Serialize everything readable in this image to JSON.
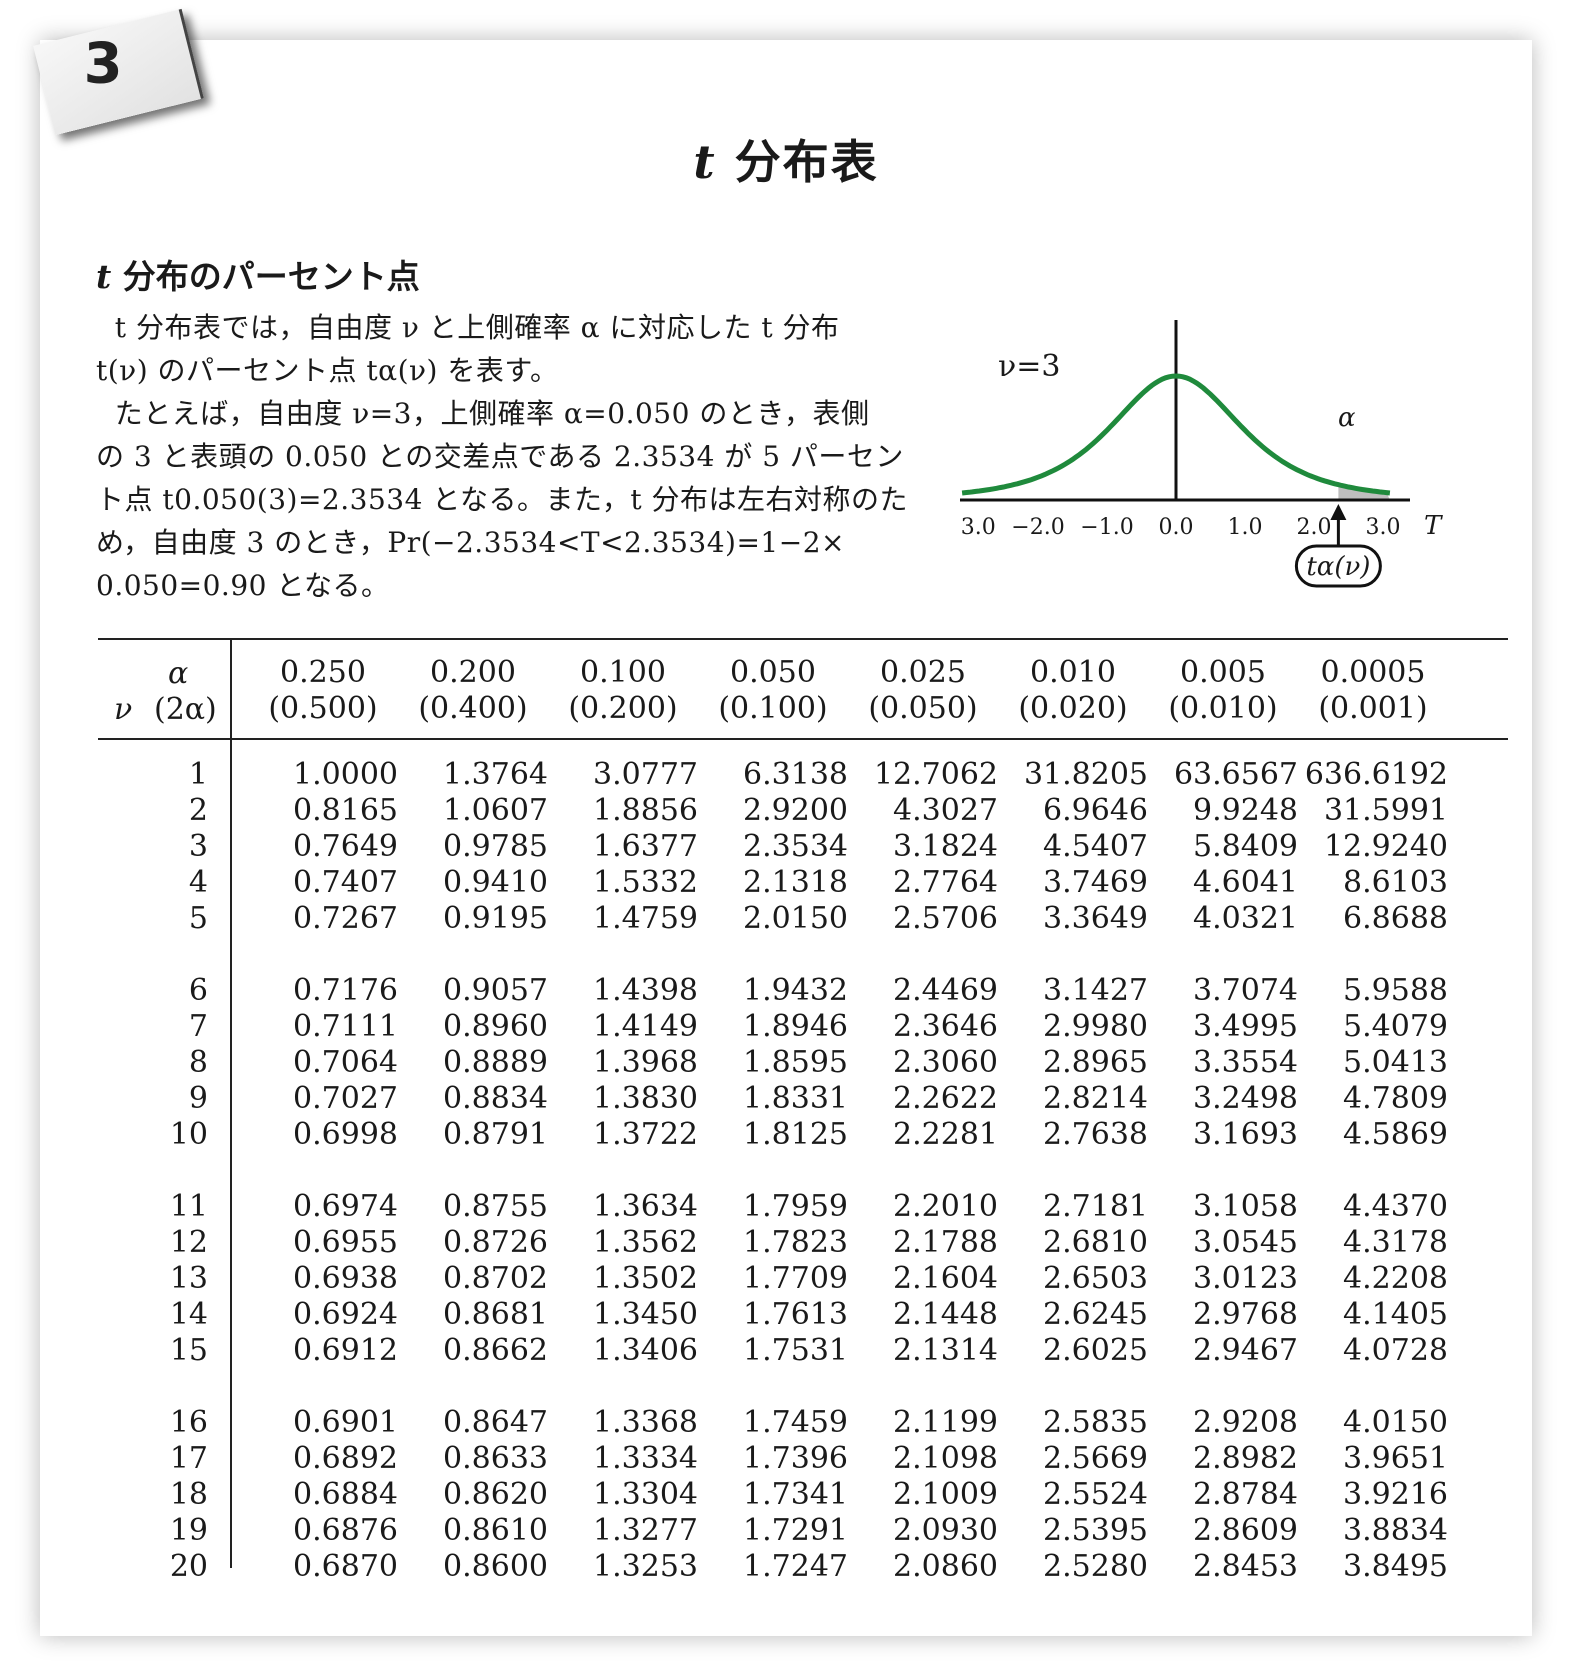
{
  "chapter_tab": "3",
  "title": {
    "symbol": "t",
    "text": "分布表"
  },
  "section": {
    "symbol": "t",
    "heading": "分布のパーセント点"
  },
  "description": [
    "  t 分布表では，自由度 ν と上側確率 α に対応した t 分布",
    "t(ν) のパーセント点 tα(ν) を表す。",
    "  たとえば，自由度 ν=3，上側確率 α=0.050 のとき，表側",
    "の 3 と表頭の 0.050 との交差点である 2.3534 が 5 パーセン",
    "ト点 t0.050(3)=2.3534 となる。また，t 分布は左右対称のた",
    "め，自由度 3 のとき，Pr(−2.3534<T<2.3534)=1−2×",
    "0.050=0.90 となる。"
  ],
  "graph": {
    "nu_label": "ν=3",
    "alpha_label": "α",
    "t_axis_label": "T",
    "tick_labels": [
      "−3.0",
      "−2.0",
      "−1.0",
      "0.0",
      "1.0",
      "2.0",
      "3.0"
    ],
    "tick_values": [
      -3,
      -2,
      -1,
      0,
      1,
      2,
      3
    ],
    "nu": 3,
    "critical_value": 2.3534,
    "marker_label": "tα(ν)",
    "curve_color": "#1f8a3c"
  },
  "table": {
    "header_alpha": "α",
    "header_nu": "ν",
    "header_two_alpha": "(2α)",
    "alpha": [
      "0.250",
      "0.200",
      "0.100",
      "0.050",
      "0.025",
      "0.010",
      "0.005",
      "0.0005"
    ],
    "two_alpha": [
      "(0.500)",
      "(0.400)",
      "(0.200)",
      "(0.100)",
      "(0.050)",
      "(0.020)",
      "(0.010)",
      "(0.001)"
    ],
    "rows": [
      {
        "nu": "1",
        "values": [
          "1.0000",
          "1.3764",
          "3.0777",
          "6.3138",
          "12.7062",
          "31.8205",
          "63.6567",
          "636.6192"
        ]
      },
      {
        "nu": "2",
        "values": [
          "0.8165",
          "1.0607",
          "1.8856",
          "2.9200",
          "4.3027",
          "6.9646",
          "9.9248",
          "31.5991"
        ]
      },
      {
        "nu": "3",
        "values": [
          "0.7649",
          "0.9785",
          "1.6377",
          "2.3534",
          "3.1824",
          "4.5407",
          "5.8409",
          "12.9240"
        ]
      },
      {
        "nu": "4",
        "values": [
          "0.7407",
          "0.9410",
          "1.5332",
          "2.1318",
          "2.7764",
          "3.7469",
          "4.6041",
          "8.6103"
        ]
      },
      {
        "nu": "5",
        "values": [
          "0.7267",
          "0.9195",
          "1.4759",
          "2.0150",
          "2.5706",
          "3.3649",
          "4.0321",
          "6.8688"
        ]
      },
      {
        "nu": "6",
        "values": [
          "0.7176",
          "0.9057",
          "1.4398",
          "1.9432",
          "2.4469",
          "3.1427",
          "3.7074",
          "5.9588"
        ]
      },
      {
        "nu": "7",
        "values": [
          "0.7111",
          "0.8960",
          "1.4149",
          "1.8946",
          "2.3646",
          "2.9980",
          "3.4995",
          "5.4079"
        ]
      },
      {
        "nu": "8",
        "values": [
          "0.7064",
          "0.8889",
          "1.3968",
          "1.8595",
          "2.3060",
          "2.8965",
          "3.3554",
          "5.0413"
        ]
      },
      {
        "nu": "9",
        "values": [
          "0.7027",
          "0.8834",
          "1.3830",
          "1.8331",
          "2.2622",
          "2.8214",
          "3.2498",
          "4.7809"
        ]
      },
      {
        "nu": "10",
        "values": [
          "0.6998",
          "0.8791",
          "1.3722",
          "1.8125",
          "2.2281",
          "2.7638",
          "3.1693",
          "4.5869"
        ]
      },
      {
        "nu": "11",
        "values": [
          "0.6974",
          "0.8755",
          "1.3634",
          "1.7959",
          "2.2010",
          "2.7181",
          "3.1058",
          "4.4370"
        ]
      },
      {
        "nu": "12",
        "values": [
          "0.6955",
          "0.8726",
          "1.3562",
          "1.7823",
          "2.1788",
          "2.6810",
          "3.0545",
          "4.3178"
        ]
      },
      {
        "nu": "13",
        "values": [
          "0.6938",
          "0.8702",
          "1.3502",
          "1.7709",
          "2.1604",
          "2.6503",
          "3.0123",
          "4.2208"
        ]
      },
      {
        "nu": "14",
        "values": [
          "0.6924",
          "0.8681",
          "1.3450",
          "1.7613",
          "2.1448",
          "2.6245",
          "2.9768",
          "4.1405"
        ]
      },
      {
        "nu": "15",
        "values": [
          "0.6912",
          "0.8662",
          "1.3406",
          "1.7531",
          "2.1314",
          "2.6025",
          "2.9467",
          "4.0728"
        ]
      },
      {
        "nu": "16",
        "values": [
          "0.6901",
          "0.8647",
          "1.3368",
          "1.7459",
          "2.1199",
          "2.5835",
          "2.9208",
          "4.0150"
        ]
      },
      {
        "nu": "17",
        "values": [
          "0.6892",
          "0.8633",
          "1.3334",
          "1.7396",
          "2.1098",
          "2.5669",
          "2.8982",
          "3.9651"
        ]
      },
      {
        "nu": "18",
        "values": [
          "0.6884",
          "0.8620",
          "1.3304",
          "1.7341",
          "2.1009",
          "2.5524",
          "2.8784",
          "3.9216"
        ]
      },
      {
        "nu": "19",
        "values": [
          "0.6876",
          "0.8610",
          "1.3277",
          "1.7291",
          "2.0930",
          "2.5395",
          "2.8609",
          "3.8834"
        ]
      },
      {
        "nu": "20",
        "values": [
          "0.6870",
          "0.8600",
          "1.3253",
          "1.7247",
          "2.0860",
          "2.5280",
          "2.8453",
          "3.8495"
        ]
      }
    ]
  }
}
